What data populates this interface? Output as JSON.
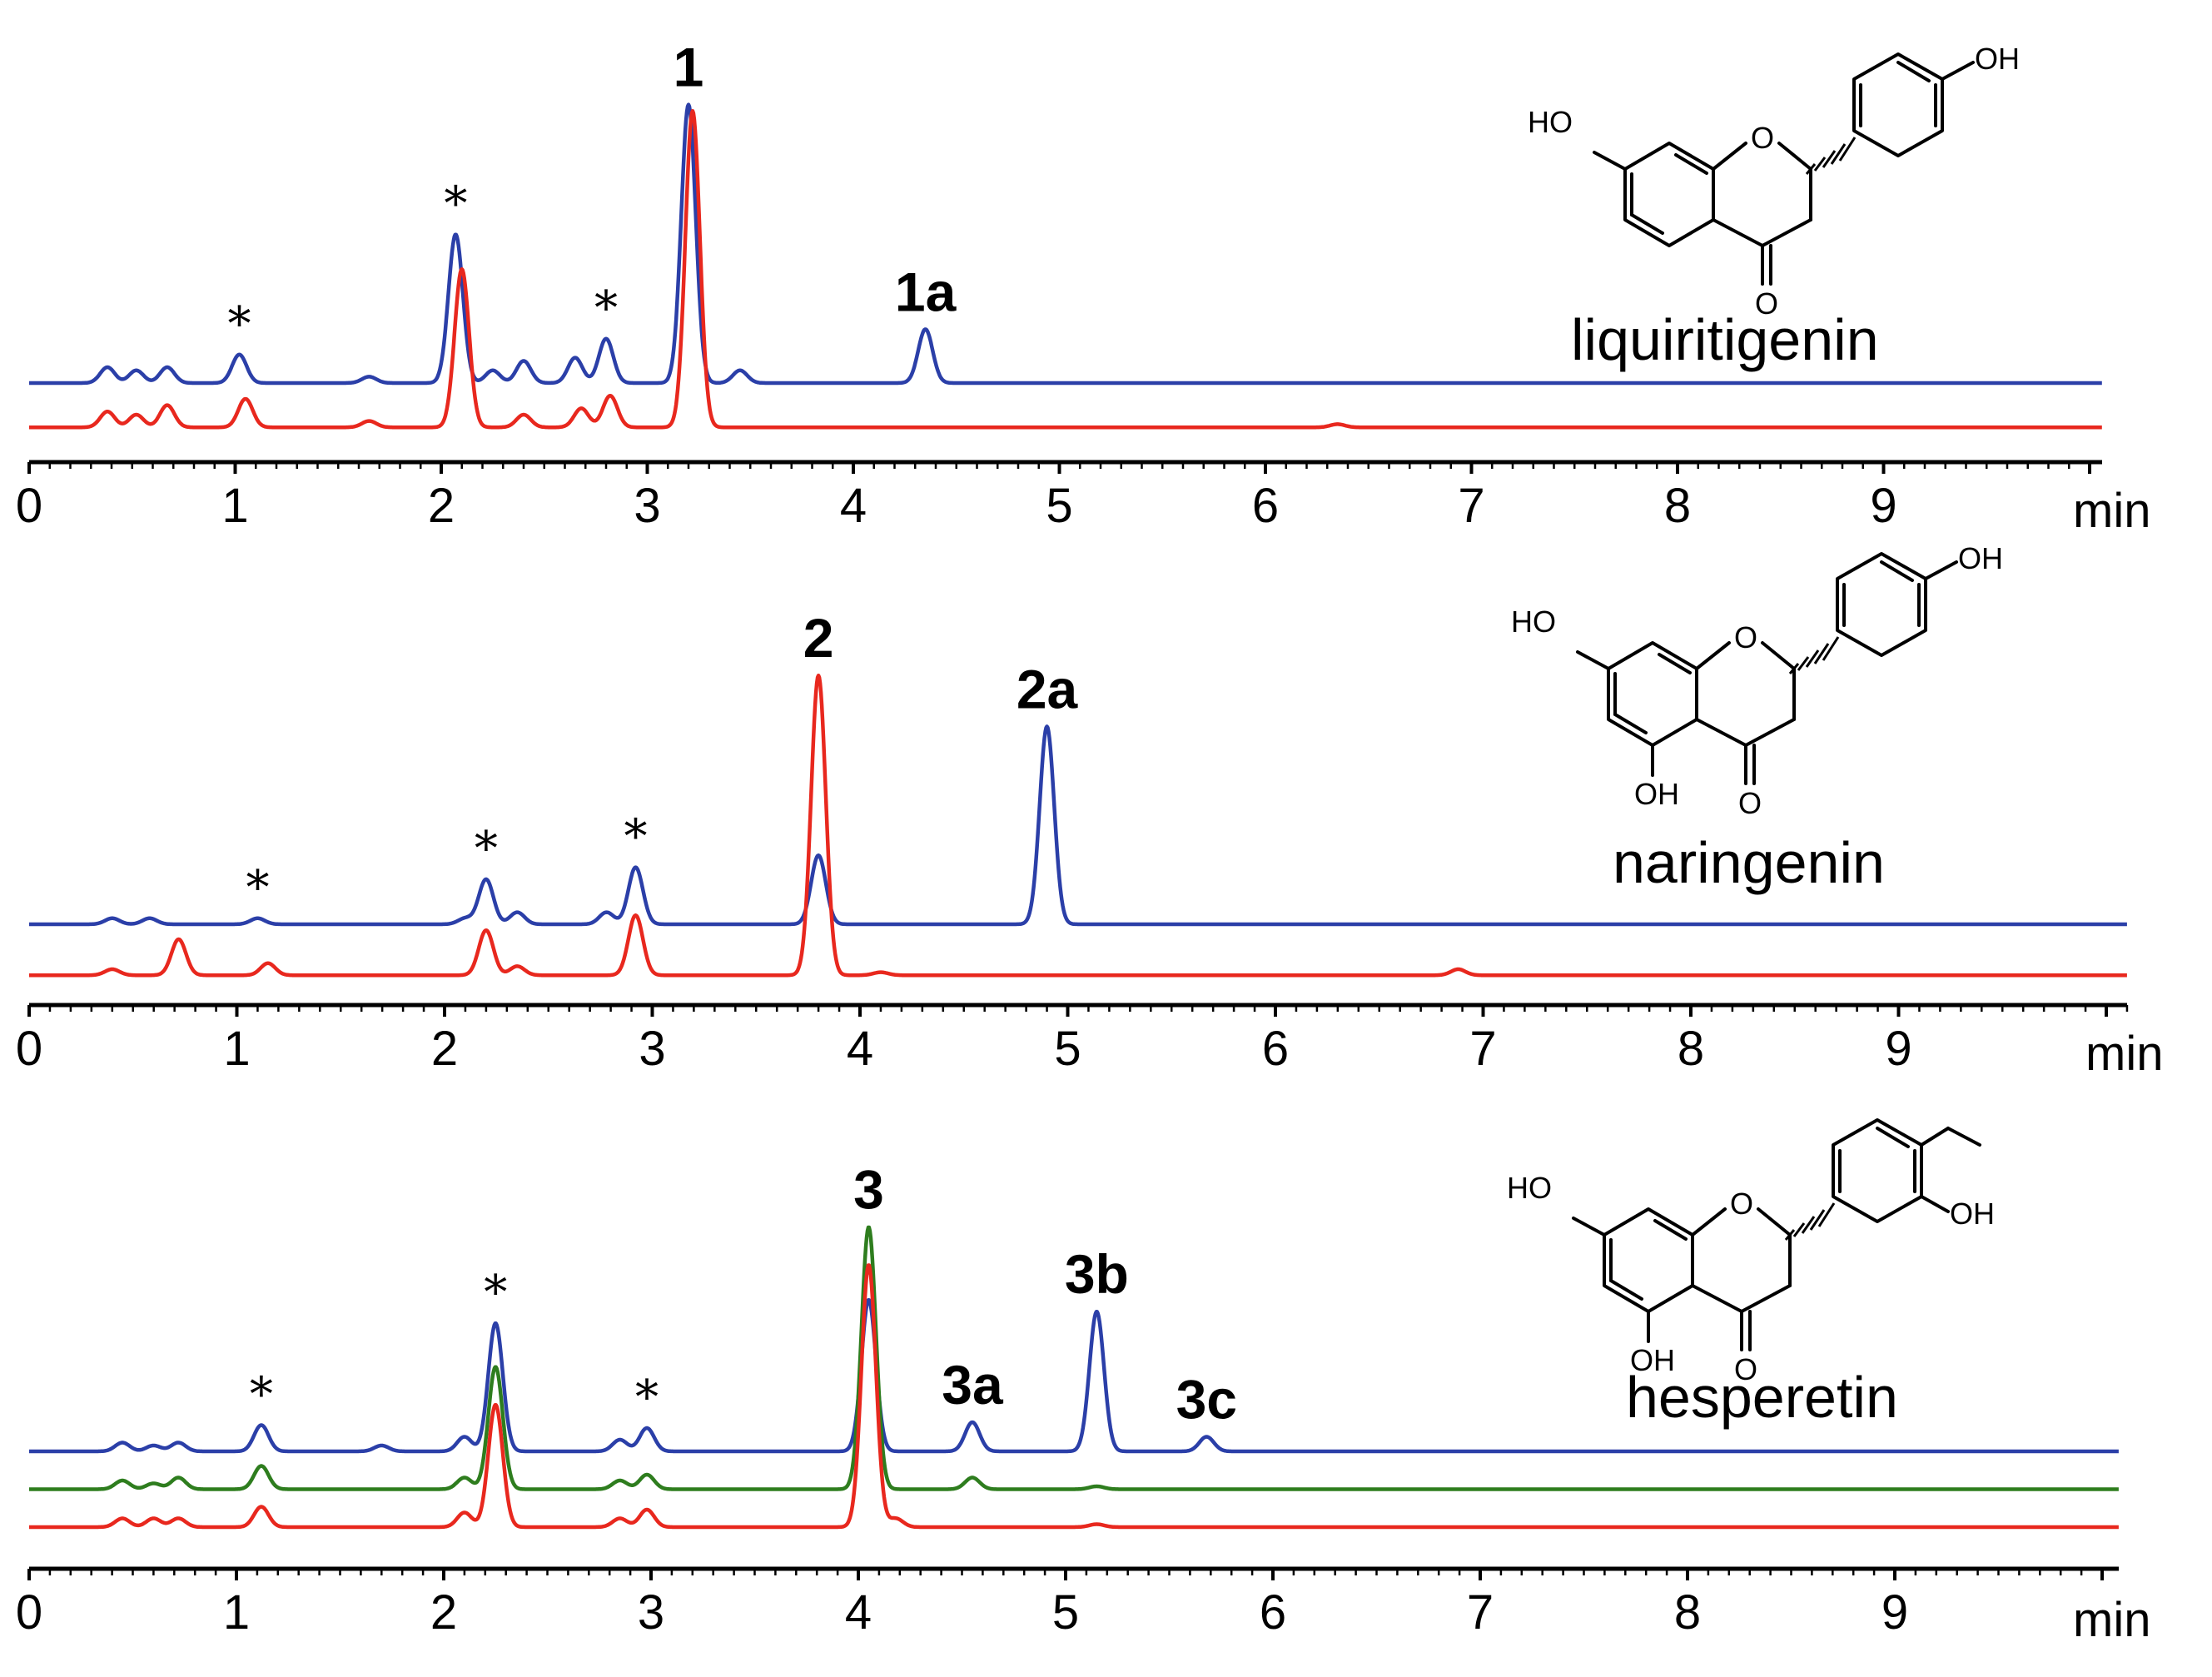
{
  "chart_data": [
    {
      "type": "line",
      "xlabel": "",
      "x_unit": "min",
      "xlim": [
        0,
        10
      ],
      "x_ticks": [
        "0",
        "1",
        "2",
        "3",
        "4",
        "5",
        "6",
        "7",
        "8",
        "9"
      ],
      "compound": "liquiritigenin",
      "series": [
        {
          "color": "#2b3fa8",
          "baseline": 0,
          "peaks": [
            [
              0.38,
              0.05
            ],
            [
              0.52,
              0.04
            ],
            [
              0.67,
              0.05
            ],
            [
              1.02,
              0.09
            ],
            [
              1.65,
              0.02
            ],
            [
              2.07,
              0.47
            ],
            [
              2.25,
              0.04
            ],
            [
              2.4,
              0.07
            ],
            [
              2.65,
              0.08
            ],
            [
              2.8,
              0.14
            ],
            [
              3.2,
              0.88
            ],
            [
              3.45,
              0.04
            ],
            [
              4.35,
              0.17
            ]
          ]
        },
        {
          "color": "#e8281e",
          "baseline": -0.14,
          "peaks": [
            [
              0.38,
              0.05
            ],
            [
              0.52,
              0.04
            ],
            [
              0.67,
              0.07
            ],
            [
              1.05,
              0.09
            ],
            [
              1.65,
              0.02
            ],
            [
              2.1,
              0.5
            ],
            [
              2.4,
              0.04
            ],
            [
              2.68,
              0.06
            ],
            [
              2.82,
              0.1
            ],
            [
              3.22,
              1.0
            ],
            [
              6.35,
              0.01
            ]
          ]
        }
      ],
      "peak_labels": [
        {
          "text": "1",
          "x": 3.2
        },
        {
          "text": "1a",
          "x": 4.35
        },
        {
          "text": "*",
          "x": 1.02
        },
        {
          "text": "*",
          "x": 2.07
        },
        {
          "text": "*",
          "x": 2.8
        }
      ]
    },
    {
      "type": "line",
      "xlabel": "",
      "x_unit": "min",
      "xlim": [
        0,
        10
      ],
      "x_ticks": [
        "0",
        "1",
        "2",
        "3",
        "4",
        "5",
        "6",
        "7",
        "8",
        "9"
      ],
      "compound": "naringenin",
      "series": [
        {
          "color": "#2b3fa8",
          "baseline": 0,
          "peaks": [
            [
              0.4,
              0.02
            ],
            [
              0.58,
              0.02
            ],
            [
              1.1,
              0.02
            ],
            [
              2.1,
              0.02
            ],
            [
              2.2,
              0.15
            ],
            [
              2.35,
              0.04
            ],
            [
              2.78,
              0.04
            ],
            [
              2.92,
              0.19
            ],
            [
              3.8,
              0.23
            ],
            [
              4.9,
              0.66
            ]
          ]
        },
        {
          "color": "#e8281e",
          "baseline": -0.17,
          "peaks": [
            [
              0.4,
              0.02
            ],
            [
              0.72,
              0.12
            ],
            [
              1.15,
              0.04
            ],
            [
              2.2,
              0.15
            ],
            [
              2.35,
              0.03
            ],
            [
              2.92,
              0.2
            ],
            [
              3.8,
              1.0
            ],
            [
              4.1,
              0.01
            ],
            [
              6.88,
              0.02
            ]
          ]
        }
      ],
      "peak_labels": [
        {
          "text": "2",
          "x": 3.8
        },
        {
          "text": "2a",
          "x": 4.9
        },
        {
          "text": "*",
          "x": 1.1
        },
        {
          "text": "*",
          "x": 2.2
        },
        {
          "text": "*",
          "x": 2.92
        }
      ]
    },
    {
      "type": "line",
      "xlabel": "",
      "x_unit": "min",
      "xlim": [
        0,
        10
      ],
      "x_ticks": [
        "0",
        "1",
        "2",
        "3",
        "4",
        "5",
        "6",
        "7",
        "8",
        "9"
      ],
      "compound": "hesperetin",
      "series": [
        {
          "color": "#2b3fa8",
          "baseline": 0,
          "peaks": [
            [
              0.45,
              0.03
            ],
            [
              0.6,
              0.02
            ],
            [
              0.72,
              0.03
            ],
            [
              1.12,
              0.09
            ],
            [
              1.7,
              0.02
            ],
            [
              2.1,
              0.05
            ],
            [
              2.25,
              0.44
            ],
            [
              2.85,
              0.04
            ],
            [
              2.98,
              0.08
            ],
            [
              4.05,
              0.52
            ],
            [
              4.55,
              0.1
            ],
            [
              5.15,
              0.48
            ],
            [
              5.68,
              0.05
            ]
          ]
        },
        {
          "color": "#2e7d1e",
          "baseline": -0.13,
          "peaks": [
            [
              0.45,
              0.03
            ],
            [
              0.6,
              0.02
            ],
            [
              0.72,
              0.04
            ],
            [
              1.12,
              0.08
            ],
            [
              2.1,
              0.04
            ],
            [
              2.25,
              0.42
            ],
            [
              2.85,
              0.03
            ],
            [
              2.98,
              0.05
            ],
            [
              4.05,
              0.9
            ],
            [
              4.55,
              0.04
            ],
            [
              5.15,
              0.01
            ]
          ]
        },
        {
          "color": "#e8281e",
          "baseline": -0.26,
          "peaks": [
            [
              0.45,
              0.03
            ],
            [
              0.6,
              0.03
            ],
            [
              0.72,
              0.03
            ],
            [
              1.12,
              0.07
            ],
            [
              2.1,
              0.05
            ],
            [
              2.25,
              0.42
            ],
            [
              2.85,
              0.03
            ],
            [
              2.98,
              0.06
            ],
            [
              4.05,
              0.9
            ],
            [
              4.18,
              0.03
            ],
            [
              5.15,
              0.01
            ]
          ]
        }
      ],
      "peak_labels": [
        {
          "text": "3",
          "x": 4.05
        },
        {
          "text": "3a",
          "x": 4.55
        },
        {
          "text": "3b",
          "x": 5.15
        },
        {
          "text": "3c",
          "x": 5.68
        },
        {
          "text": "*",
          "x": 1.12
        },
        {
          "text": "*",
          "x": 2.25
        },
        {
          "text": "*",
          "x": 2.98
        }
      ]
    }
  ],
  "structures": {
    "liquiritigenin": {
      "atoms": [
        "HO",
        "O",
        "OH",
        "O"
      ]
    },
    "naringenin": {
      "atoms": [
        "HO",
        "O",
        "OH",
        "OH",
        "O"
      ]
    },
    "hesperetin": {
      "atoms": [
        "HO",
        "O",
        "OH",
        "OH",
        "O"
      ]
    }
  }
}
